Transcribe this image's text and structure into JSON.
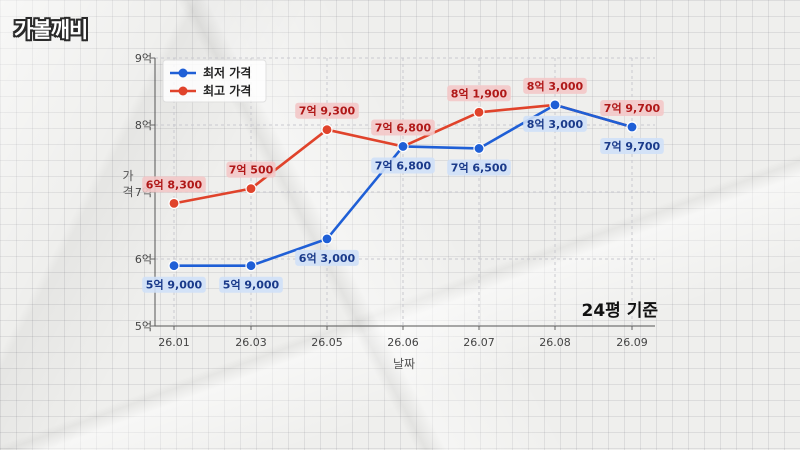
{
  "brand": {
    "logo_text": "가볼깨비"
  },
  "chart_data": {
    "type": "line",
    "xlabel": "날짜",
    "ylabel": "가격",
    "categories": [
      "26.01",
      "26.03",
      "26.05",
      "26.06",
      "26.07",
      "26.08",
      "26.09"
    ],
    "yticks": [
      {
        "value": 5,
        "label": "5억"
      },
      {
        "value": 6,
        "label": "6억"
      },
      {
        "value": 7,
        "label": "7억"
      },
      {
        "value": 8,
        "label": "8억"
      },
      {
        "value": 9,
        "label": "9억"
      }
    ],
    "ylim": [
      5,
      9
    ],
    "grid": true,
    "legend_position": "top-left",
    "annotation": "24평 기준",
    "series": [
      {
        "name": "최저 가격",
        "color": "#1f5fd6",
        "label_bg": "#cfe0f7",
        "label_color": "#1a3a8a",
        "label_side": "below",
        "values": [
          5.9,
          5.9,
          6.3,
          7.68,
          7.65,
          8.3,
          7.97
        ],
        "labels": [
          "5억 9,000",
          "5억 9,000",
          "6억 3,000",
          "7억 6,800",
          "7억 6,500",
          "8억 3,000",
          "7억 9,700"
        ]
      },
      {
        "name": "최고 가격",
        "color": "#e0432b",
        "label_bg": "#f3c8c8",
        "label_color": "#b01818",
        "label_side": "above",
        "values": [
          6.83,
          7.05,
          7.93,
          7.68,
          8.19,
          8.3,
          7.97
        ],
        "labels": [
          "6억 8,300",
          "7억 500",
          "7억 9,300",
          "7억 6,800",
          "8억 1,900",
          "8억 3,000",
          "7억 9,700"
        ]
      }
    ]
  }
}
